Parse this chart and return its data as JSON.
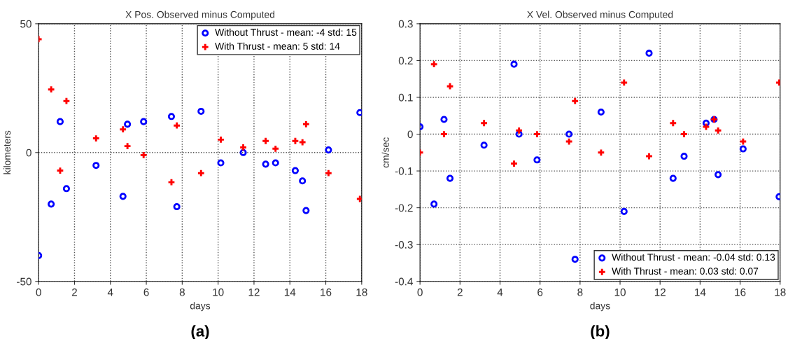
{
  "chart_data": [
    {
      "type": "scatter",
      "title": "X Pos. Observed minus Computed",
      "xlabel": "days",
      "ylabel": "kilometers",
      "annotations": [
        "(a)"
      ],
      "x": [
        0,
        0.7,
        1.2,
        1.55,
        3.2,
        4.7,
        4.95,
        5.85,
        7.4,
        7.7,
        9.05,
        10.15,
        11.4,
        12.65,
        13.2,
        14.3,
        14.7,
        14.9,
        16.15,
        17.9
      ],
      "series": [
        {
          "name": "Without Thrust - mean: -4 std: 15",
          "color": "#0000ff",
          "marker": "circle",
          "values": [
            -40,
            -20,
            12,
            -14,
            -5,
            -17,
            11,
            12,
            14,
            -21,
            16,
            -4,
            0,
            -4.5,
            -4,
            -7,
            -11,
            -22.5,
            1,
            15.5
          ]
        },
        {
          "name": "With Thrust - mean: 5 std: 14",
          "color": "#ff0000",
          "marker": "cross",
          "values": [
            44,
            24.5,
            -7,
            20,
            5.5,
            9,
            2.5,
            -1,
            -11.5,
            10.5,
            -8,
            5,
            2,
            4.5,
            1.5,
            4.5,
            4,
            11,
            -8,
            -18
          ]
        }
      ],
      "xlim": [
        0,
        18
      ],
      "xticks": [
        0,
        2,
        4,
        6,
        8,
        10,
        12,
        14,
        16,
        18
      ],
      "ylim": [
        -50,
        50
      ],
      "yticks": [
        -50,
        0,
        50
      ],
      "grid": true,
      "legend": "top right"
    },
    {
      "type": "scatter",
      "title": "X Vel. Observed minus Computed",
      "xlabel": "days",
      "ylabel": "cm/sec",
      "annotations": [
        "(b)"
      ],
      "x": [
        0,
        0.7,
        1.2,
        1.5,
        3.2,
        4.7,
        4.95,
        5.85,
        7.45,
        7.75,
        9.05,
        10.2,
        11.45,
        12.65,
        13.2,
        14.3,
        14.7,
        14.9,
        16.15,
        17.95
      ],
      "series": [
        {
          "name": "Without Thrust - mean: -0.04 std: 0.13",
          "color": "#0000ff",
          "marker": "circle",
          "values": [
            0.02,
            -0.19,
            0.04,
            -0.12,
            -0.03,
            0.19,
            0,
            -0.07,
            0,
            -0.34,
            0.06,
            -0.21,
            0.22,
            -0.12,
            -0.06,
            0.03,
            0.04,
            -0.11,
            -0.04,
            -0.17
          ]
        },
        {
          "name": "With Thrust - mean: 0.03 std: 0.07",
          "color": "#ff0000",
          "marker": "cross",
          "values": [
            -0.05,
            0.19,
            0,
            0.13,
            0.03,
            -0.08,
            0.01,
            0,
            -0.02,
            0.09,
            -0.05,
            0.14,
            -0.06,
            0.03,
            0,
            0.02,
            0.04,
            0.01,
            -0.02,
            0.14
          ]
        }
      ],
      "xlim": [
        0,
        18
      ],
      "xticks": [
        0,
        2,
        4,
        6,
        8,
        10,
        12,
        14,
        16,
        18
      ],
      "ylim": [
        -0.4,
        0.3
      ],
      "yticks": [
        -0.4,
        -0.3,
        -0.2,
        -0.1,
        0,
        0.1,
        0.2,
        0.3
      ],
      "grid": true,
      "legend": "lower right"
    }
  ]
}
